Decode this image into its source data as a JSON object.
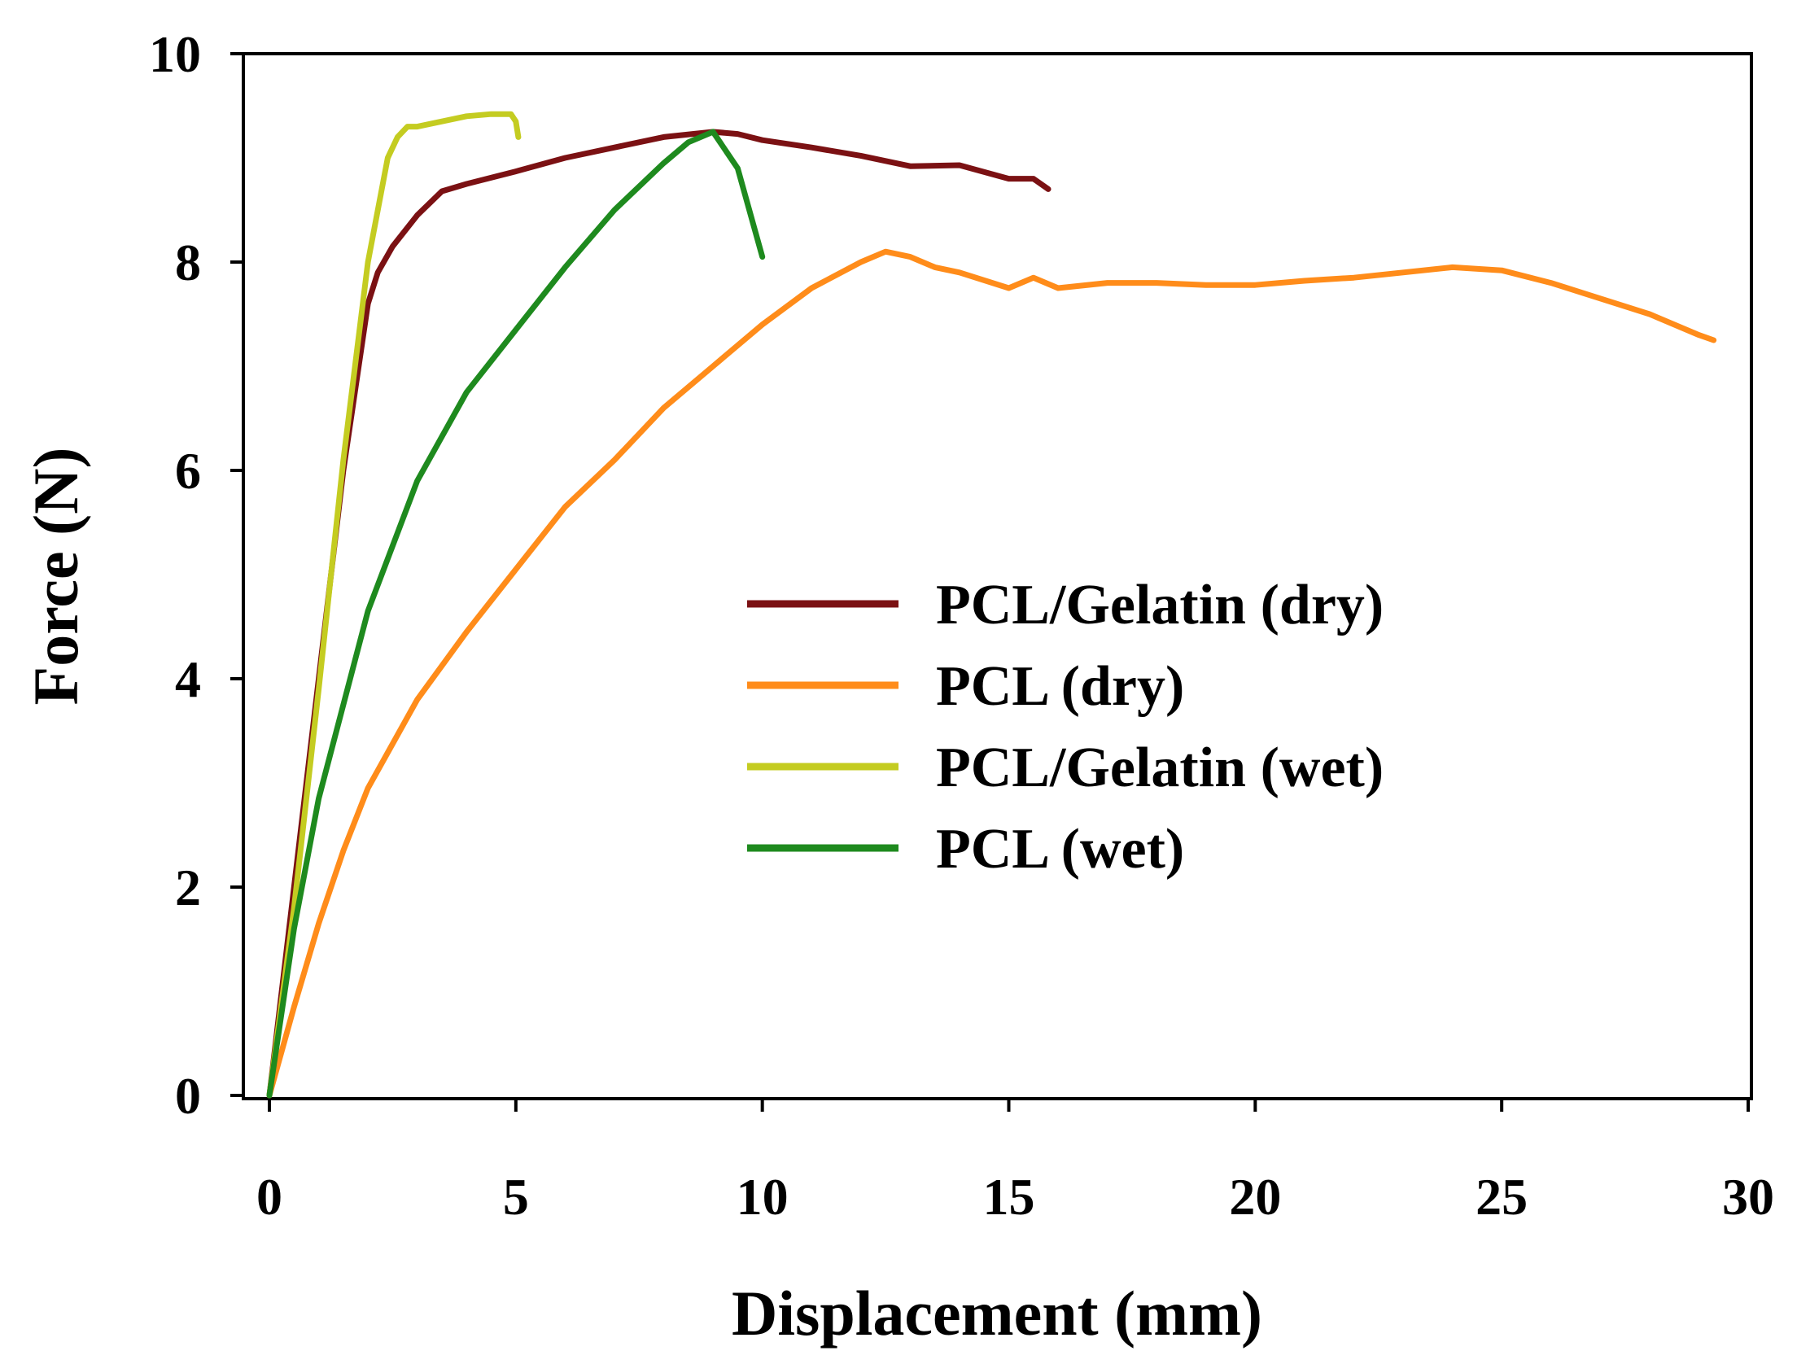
{
  "chart_data": {
    "type": "line",
    "title": "",
    "xlabel": "Displacement (mm)",
    "ylabel": "Force (N)",
    "xlim": [
      0,
      30
    ],
    "ylim": [
      0,
      10
    ],
    "xticks": [
      0,
      5,
      10,
      15,
      20,
      25,
      30
    ],
    "yticks": [
      0,
      2,
      4,
      6,
      8,
      10
    ],
    "xtick_labels": [
      "0",
      "5",
      "10",
      "15",
      "20",
      "25",
      "30"
    ],
    "ytick_labels": [
      "0",
      "2",
      "4",
      "6",
      "8",
      "10"
    ],
    "grid": false,
    "legend_position": "center-right",
    "series": [
      {
        "name": "PCL/Gelatin (dry)",
        "color": "#7b1113",
        "x": [
          0,
          0.5,
          1.0,
          1.5,
          2.0,
          2.2,
          2.5,
          3.0,
          3.5,
          4.0,
          5.0,
          6.0,
          7.0,
          8.0,
          9.0,
          9.5,
          10.0,
          11.0,
          12.0,
          13.0,
          14.0,
          15.0,
          15.5,
          15.8
        ],
        "y": [
          0,
          2.0,
          4.0,
          6.0,
          7.6,
          7.9,
          8.15,
          8.45,
          8.68,
          8.75,
          8.87,
          9.0,
          9.1,
          9.2,
          9.25,
          9.23,
          9.17,
          9.1,
          9.02,
          8.92,
          8.93,
          8.8,
          8.8,
          8.7
        ]
      },
      {
        "name": "PCL (dry)",
        "color": "#ff8c1a",
        "x": [
          0,
          0.5,
          1.0,
          1.5,
          2.0,
          3.0,
          4.0,
          5.0,
          6.0,
          7.0,
          8.0,
          9.0,
          10.0,
          11.0,
          12.0,
          12.5,
          13.0,
          13.5,
          14.0,
          15.0,
          15.5,
          16.0,
          17.0,
          18.0,
          19.0,
          20.0,
          21.0,
          22.0,
          23.0,
          24.0,
          25.0,
          26.0,
          27.0,
          28.0,
          29.0,
          29.3
        ],
        "y": [
          0,
          0.85,
          1.65,
          2.35,
          2.95,
          3.8,
          4.45,
          5.05,
          5.65,
          6.1,
          6.6,
          7.0,
          7.4,
          7.75,
          8.0,
          8.1,
          8.05,
          7.95,
          7.9,
          7.75,
          7.85,
          7.75,
          7.8,
          7.8,
          7.78,
          7.78,
          7.82,
          7.85,
          7.9,
          7.95,
          7.92,
          7.8,
          7.65,
          7.5,
          7.3,
          7.25
        ]
      },
      {
        "name": "PCL/Gelatin (wet)",
        "color": "#c4cc21",
        "x": [
          0,
          0.5,
          1.0,
          1.5,
          2.0,
          2.4,
          2.6,
          2.8,
          3.0,
          3.5,
          4.0,
          4.5,
          4.9,
          5.0,
          5.05
        ],
        "y": [
          0,
          1.8,
          3.9,
          6.1,
          8.0,
          9.0,
          9.2,
          9.3,
          9.3,
          9.35,
          9.4,
          9.42,
          9.42,
          9.35,
          9.2
        ]
      },
      {
        "name": "PCL (wet)",
        "color": "#1e8a1e",
        "x": [
          0,
          0.5,
          1.0,
          2.0,
          3.0,
          4.0,
          5.0,
          6.0,
          7.0,
          8.0,
          8.5,
          9.0,
          9.5,
          10.0
        ],
        "y": [
          0,
          1.6,
          2.85,
          4.65,
          5.9,
          6.75,
          7.35,
          7.95,
          8.5,
          8.95,
          9.15,
          9.25,
          8.9,
          8.05
        ]
      }
    ]
  }
}
